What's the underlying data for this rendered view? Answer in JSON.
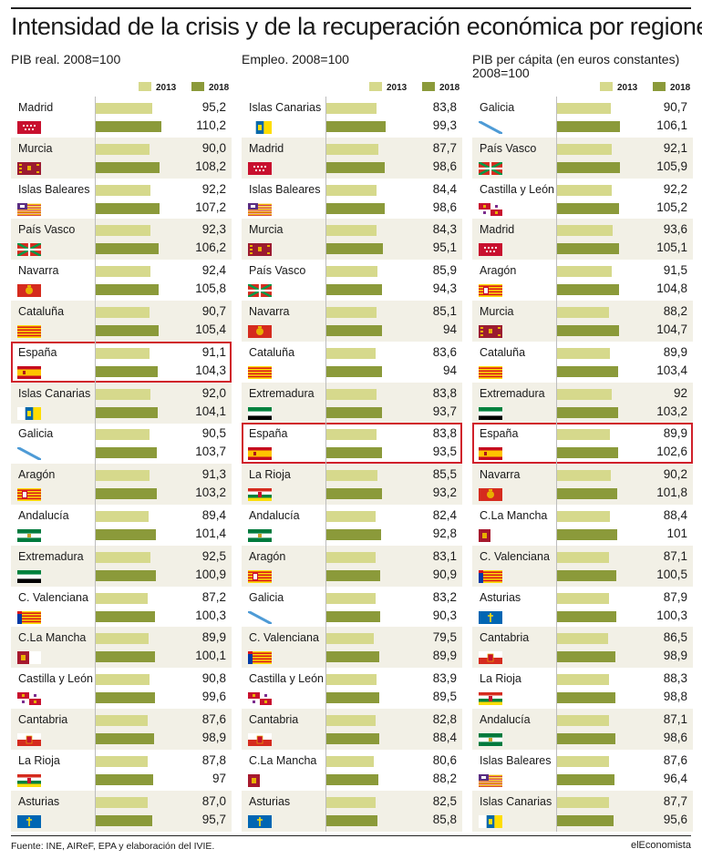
{
  "title": "Intensidad de la crisis y de la recuperación económica por regiones",
  "source": "Fuente: INE, AIReF, EPA y elaboración del IVIE.",
  "brand": "elEconomista",
  "colors": {
    "y2013": "#d6d98c",
    "y2018": "#8b9a3a",
    "highlight": "#d0202a",
    "rowAlt": "#f2f0e6"
  },
  "chart_data": [
    {
      "type": "bar",
      "title": "PIB real. 2008=100",
      "legend": [
        "2013",
        "2018"
      ],
      "categories": [
        "Madrid",
        "Murcia",
        "Islas Baleares",
        "País Vasco",
        "Navarra",
        "Cataluña",
        "España",
        "Islas Canarias",
        "Galicia",
        "Aragón",
        "Andalucía",
        "Extremadura",
        "C. Valenciana",
        "C.La Mancha",
        "Castilla y León",
        "Cantabria",
        "La Rioja",
        "Asturias"
      ],
      "flags": [
        "madrid",
        "murcia",
        "baleares",
        "paisvasco",
        "navarra",
        "cataluna",
        "espana",
        "canarias",
        "galicia",
        "aragon",
        "andalucia",
        "extremadura",
        "valenciana",
        "lamancha",
        "castillaleon",
        "cantabria",
        "larioja",
        "asturias"
      ],
      "series": [
        {
          "name": "2013",
          "values": [
            95.2,
            90.0,
            92.2,
            92.3,
            92.4,
            90.7,
            91.1,
            92.0,
            90.5,
            91.3,
            89.4,
            92.5,
            87.2,
            89.9,
            90.8,
            87.6,
            87.8,
            87.0
          ],
          "labels": [
            "95,2",
            "90,0",
            "92,2",
            "92,3",
            "92,4",
            "90,7",
            "91,1",
            "92,0",
            "90,5",
            "91,3",
            "89,4",
            "92,5",
            "87,2",
            "89,9",
            "90,8",
            "87,6",
            "87,8",
            "87,0"
          ]
        },
        {
          "name": "2018",
          "values": [
            110.2,
            108.2,
            107.2,
            106.2,
            105.8,
            105.4,
            104.3,
            104.1,
            103.7,
            103.2,
            101.4,
            100.9,
            100.3,
            100.1,
            99.6,
            98.9,
            97,
            95.7
          ],
          "labels": [
            "110,2",
            "108,2",
            "107,2",
            "106,2",
            "105,8",
            "105,4",
            "104,3",
            "104,1",
            "103,7",
            "103,2",
            "101,4",
            "100,9",
            "100,3",
            "100,1",
            "99,6",
            "98,9",
            "97",
            "95,7"
          ]
        }
      ],
      "highlight": "España"
    },
    {
      "type": "bar",
      "title": "Empleo. 2008=100",
      "legend": [
        "2013",
        "2018"
      ],
      "categories": [
        "Islas Canarias",
        "Madrid",
        "Islas Baleares",
        "Murcia",
        "País Vasco",
        "Navarra",
        "Cataluña",
        "Extremadura",
        "España",
        "La Rioja",
        "Andalucía",
        "Aragón",
        "Galicia",
        "C. Valenciana",
        "Castilla y León",
        "Cantabria",
        "C.La Mancha",
        "Asturias"
      ],
      "flags": [
        "canarias",
        "madrid",
        "baleares",
        "murcia",
        "paisvasco",
        "navarra",
        "cataluna",
        "extremadura",
        "espana",
        "larioja",
        "andalucia",
        "aragon",
        "galicia",
        "valenciana",
        "castillaleon",
        "cantabria",
        "lamancha",
        "asturias"
      ],
      "series": [
        {
          "name": "2013",
          "values": [
            83.8,
            87.7,
            84.4,
            84.3,
            85.9,
            85.1,
            83.6,
            83.8,
            83.8,
            85.5,
            82.4,
            83.1,
            83.2,
            79.5,
            83.9,
            82.8,
            80.6,
            82.5
          ],
          "labels": [
            "83,8",
            "87,7",
            "84,4",
            "84,3",
            "85,9",
            "85,1",
            "83,6",
            "83,8",
            "83,8",
            "85,5",
            "82,4",
            "83,1",
            "83,2",
            "79,5",
            "83,9",
            "82,8",
            "80,6",
            "82,5"
          ]
        },
        {
          "name": "2018",
          "values": [
            99.3,
            98.6,
            98.6,
            95.1,
            94.3,
            94,
            94,
            93.7,
            93.5,
            93.2,
            92.8,
            90.9,
            90.3,
            89.9,
            89.5,
            88.4,
            88.2,
            85.8
          ],
          "labels": [
            "99,3",
            "98,6",
            "98,6",
            "95,1",
            "94,3",
            "94",
            "94",
            "93,7",
            "93,5",
            "93,2",
            "92,8",
            "90,9",
            "90,3",
            "89,9",
            "89,5",
            "88,4",
            "88,2",
            "85,8"
          ]
        }
      ],
      "highlight": "España"
    },
    {
      "type": "bar",
      "title": "PIB per cápita (en euros constantes) 2008=100",
      "legend": [
        "2013",
        "2018"
      ],
      "categories": [
        "Galicia",
        "País Vasco",
        "Castilla y León",
        "Madrid",
        "Aragón",
        "Murcia",
        "Cataluña",
        "Extremadura",
        "España",
        "Navarra",
        "C.La Mancha",
        "C. Valenciana",
        "Asturias",
        "Cantabria",
        "La Rioja",
        "Andalucía",
        "Islas Baleares",
        "Islas Canarias"
      ],
      "flags": [
        "galicia",
        "paisvasco",
        "castillaleon",
        "madrid",
        "aragon",
        "murcia",
        "cataluna",
        "extremadura",
        "espana",
        "navarra",
        "lamancha",
        "valenciana",
        "asturias",
        "cantabria",
        "larioja",
        "andalucia",
        "baleares",
        "canarias"
      ],
      "series": [
        {
          "name": "2013",
          "values": [
            90.7,
            92.1,
            92.2,
            93.6,
            91.5,
            88.2,
            89.9,
            92,
            89.9,
            90.2,
            88.4,
            87.1,
            87.9,
            86.5,
            88.3,
            87.1,
            87.6,
            87.7
          ],
          "labels": [
            "90,7",
            "92,1",
            "92,2",
            "93,6",
            "91,5",
            "88,2",
            "89,9",
            "92",
            "89,9",
            "90,2",
            "88,4",
            "87,1",
            "87,9",
            "86,5",
            "88,3",
            "87,1",
            "87,6",
            "87,7"
          ]
        },
        {
          "name": "2018",
          "values": [
            106.1,
            105.9,
            105.2,
            105.1,
            104.8,
            104.7,
            103.4,
            103.2,
            102.6,
            101.8,
            101,
            100.5,
            100.3,
            98.9,
            98.8,
            98.6,
            96.4,
            95.6
          ],
          "labels": [
            "106,1",
            "105,9",
            "105,2",
            "105,1",
            "104,8",
            "104,7",
            "103,4",
            "103,2",
            "102,6",
            "101,8",
            "101",
            "100,5",
            "100,3",
            "98,9",
            "98,8",
            "98,6",
            "96,4",
            "95,6"
          ]
        }
      ],
      "highlight": "España"
    }
  ]
}
